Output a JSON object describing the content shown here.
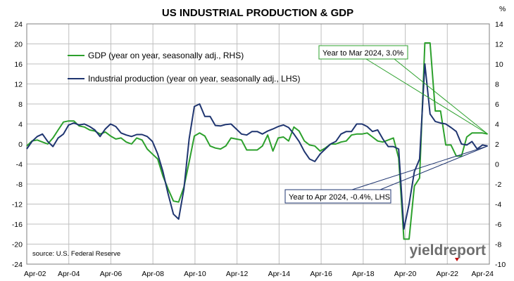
{
  "chart_data": {
    "type": "line",
    "title": "US INDUSTRIAL PRODUCTION & GDP",
    "right_axis_unit": "%",
    "source": "source: U.S. Federal Reserve",
    "brand": "yieldreport",
    "x_ticks": [
      "Apr-02",
      "Apr-04",
      "Apr-06",
      "Apr-08",
      "Apr-10",
      "Apr-12",
      "Apr-14",
      "Apr-16",
      "Apr-18",
      "Apr-20",
      "Apr-22",
      "Apr-24"
    ],
    "x_range": [
      2002.25,
      2024.33
    ],
    "left_axis": {
      "ticks": [
        "24",
        "20",
        "16",
        "12",
        "8",
        "4",
        "0",
        "-4",
        "-8",
        "-12",
        "-16",
        "-20",
        "-24"
      ],
      "range": [
        -24,
        24
      ]
    },
    "right_axis": {
      "ticks": [
        "14",
        "12",
        "10",
        "8",
        "6",
        "4",
        "2",
        "0",
        "-2",
        "-4",
        "-6",
        "-8",
        "-10"
      ],
      "range": [
        -10,
        14
      ]
    },
    "grid": true,
    "legend_placement": "top-left",
    "series": [
      {
        "name": "GDP (year on year, seasonally adj., RHS)",
        "axis": "right",
        "color": "#2ca02c",
        "x": [
          2002.25,
          2002.5,
          2002.75,
          2003.0,
          2003.25,
          2003.5,
          2003.75,
          2004.0,
          2004.25,
          2004.5,
          2004.75,
          2005.0,
          2005.25,
          2005.5,
          2005.75,
          2006.0,
          2006.25,
          2006.5,
          2006.75,
          2007.0,
          2007.25,
          2007.5,
          2007.75,
          2008.0,
          2008.25,
          2008.5,
          2008.75,
          2009.0,
          2009.25,
          2009.5,
          2009.75,
          2010.0,
          2010.25,
          2010.5,
          2010.75,
          2011.0,
          2011.25,
          2011.5,
          2011.75,
          2012.0,
          2012.25,
          2012.5,
          2012.75,
          2013.0,
          2013.25,
          2013.5,
          2013.75,
          2014.0,
          2014.25,
          2014.5,
          2014.75,
          2015.0,
          2015.25,
          2015.5,
          2015.75,
          2016.0,
          2016.25,
          2016.5,
          2016.75,
          2017.0,
          2017.25,
          2017.5,
          2017.75,
          2018.0,
          2018.25,
          2018.5,
          2018.75,
          2019.0,
          2019.25,
          2019.5,
          2019.75,
          2020.0,
          2020.25,
          2020.5,
          2020.75,
          2021.0,
          2021.25,
          2021.5,
          2021.75,
          2022.0,
          2022.25,
          2022.5,
          2022.75,
          2023.0,
          2023.25,
          2023.5,
          2023.75,
          2024.0,
          2024.25
        ],
        "values": [
          1.8,
          2.3,
          2.4,
          2.2,
          2.0,
          2.6,
          3.4,
          4.2,
          4.3,
          4.3,
          3.8,
          3.7,
          3.4,
          3.3,
          3.0,
          3.2,
          2.8,
          2.5,
          2.6,
          2.2,
          2.0,
          2.6,
          2.4,
          1.5,
          1.0,
          0.5,
          -1.2,
          -2.5,
          -3.7,
          -3.8,
          -2.3,
          0.2,
          2.8,
          3.1,
          2.8,
          1.8,
          1.6,
          1.5,
          1.8,
          2.6,
          2.5,
          2.4,
          1.4,
          1.4,
          1.4,
          1.8,
          2.9,
          1.3,
          2.6,
          2.7,
          2.3,
          3.7,
          3.3,
          2.3,
          1.9,
          1.8,
          1.3,
          1.6,
          2.0,
          2.0,
          2.2,
          2.3,
          2.9,
          3.0,
          3.0,
          3.1,
          2.7,
          2.3,
          2.2,
          2.4,
          2.6,
          0.6,
          -7.5,
          -7.5,
          -2.2,
          -1.4,
          12.1,
          12.1,
          5.3,
          5.3,
          1.9,
          1.9,
          0.8,
          0.8,
          2.7,
          3.1,
          3.1,
          3.1,
          3.0
        ]
      },
      {
        "name": "Industrial production (year on year, seasonally adj., LHS)",
        "axis": "left",
        "color": "#1f3570",
        "x": [
          2002.25,
          2002.5,
          2002.75,
          2003.0,
          2003.25,
          2003.5,
          2003.75,
          2004.0,
          2004.25,
          2004.5,
          2004.75,
          2005.0,
          2005.25,
          2005.5,
          2005.75,
          2006.0,
          2006.25,
          2006.5,
          2006.75,
          2007.0,
          2007.25,
          2007.5,
          2007.75,
          2008.0,
          2008.25,
          2008.5,
          2008.75,
          2009.0,
          2009.25,
          2009.5,
          2009.75,
          2010.0,
          2010.25,
          2010.5,
          2010.75,
          2011.0,
          2011.25,
          2011.5,
          2011.75,
          2012.0,
          2012.25,
          2012.5,
          2012.75,
          2013.0,
          2013.25,
          2013.5,
          2013.75,
          2014.0,
          2014.25,
          2014.5,
          2014.75,
          2015.0,
          2015.25,
          2015.5,
          2015.75,
          2016.0,
          2016.25,
          2016.5,
          2016.75,
          2017.0,
          2017.25,
          2017.5,
          2017.75,
          2018.0,
          2018.25,
          2018.5,
          2018.75,
          2019.0,
          2019.25,
          2019.5,
          2019.75,
          2020.0,
          2020.25,
          2020.5,
          2020.75,
          2021.0,
          2021.25,
          2021.5,
          2021.75,
          2022.0,
          2022.25,
          2022.5,
          2022.75,
          2023.0,
          2023.25,
          2023.5,
          2023.75,
          2024.0,
          2024.25
        ],
        "values": [
          -1.0,
          0.5,
          1.5,
          2.0,
          0.5,
          -0.5,
          1.2,
          2.0,
          3.8,
          4.2,
          3.8,
          4.0,
          3.5,
          2.8,
          1.5,
          3.0,
          4.0,
          3.5,
          2.2,
          1.8,
          1.5,
          1.9,
          1.9,
          1.5,
          0.5,
          -2.0,
          -5.5,
          -10.0,
          -14.0,
          -15.0,
          -9.0,
          1.0,
          7.5,
          8.0,
          5.5,
          5.5,
          3.7,
          3.6,
          3.9,
          4.0,
          3.0,
          2.0,
          1.8,
          2.5,
          2.5,
          2.0,
          2.6,
          3.0,
          3.5,
          3.8,
          3.3,
          2.0,
          0.5,
          -1.5,
          -3.0,
          -3.5,
          -2.0,
          -1.0,
          0.0,
          0.5,
          2.0,
          2.5,
          2.5,
          4.0,
          4.0,
          3.5,
          2.5,
          2.8,
          1.0,
          -0.5,
          -0.5,
          -1.0,
          -17.0,
          -12.0,
          -5.5,
          -3.0,
          16.0,
          6.0,
          4.5,
          4.2,
          4.0,
          3.3,
          2.5,
          0.0,
          -0.2,
          0.5,
          -1.0,
          -0.2,
          -0.4
        ]
      }
    ],
    "annotations": [
      {
        "text": "Year to Mar 2024, 3.0%",
        "series": 0
      },
      {
        "text": "Year to Apr 2024, -0.4%, LHS",
        "series": 1
      }
    ],
    "colors": {
      "gdp": "#2ca02c",
      "ip": "#1f3570",
      "grid": "#bfbfbf",
      "axis": "#7f7f7f",
      "marker": "#c00000"
    }
  }
}
